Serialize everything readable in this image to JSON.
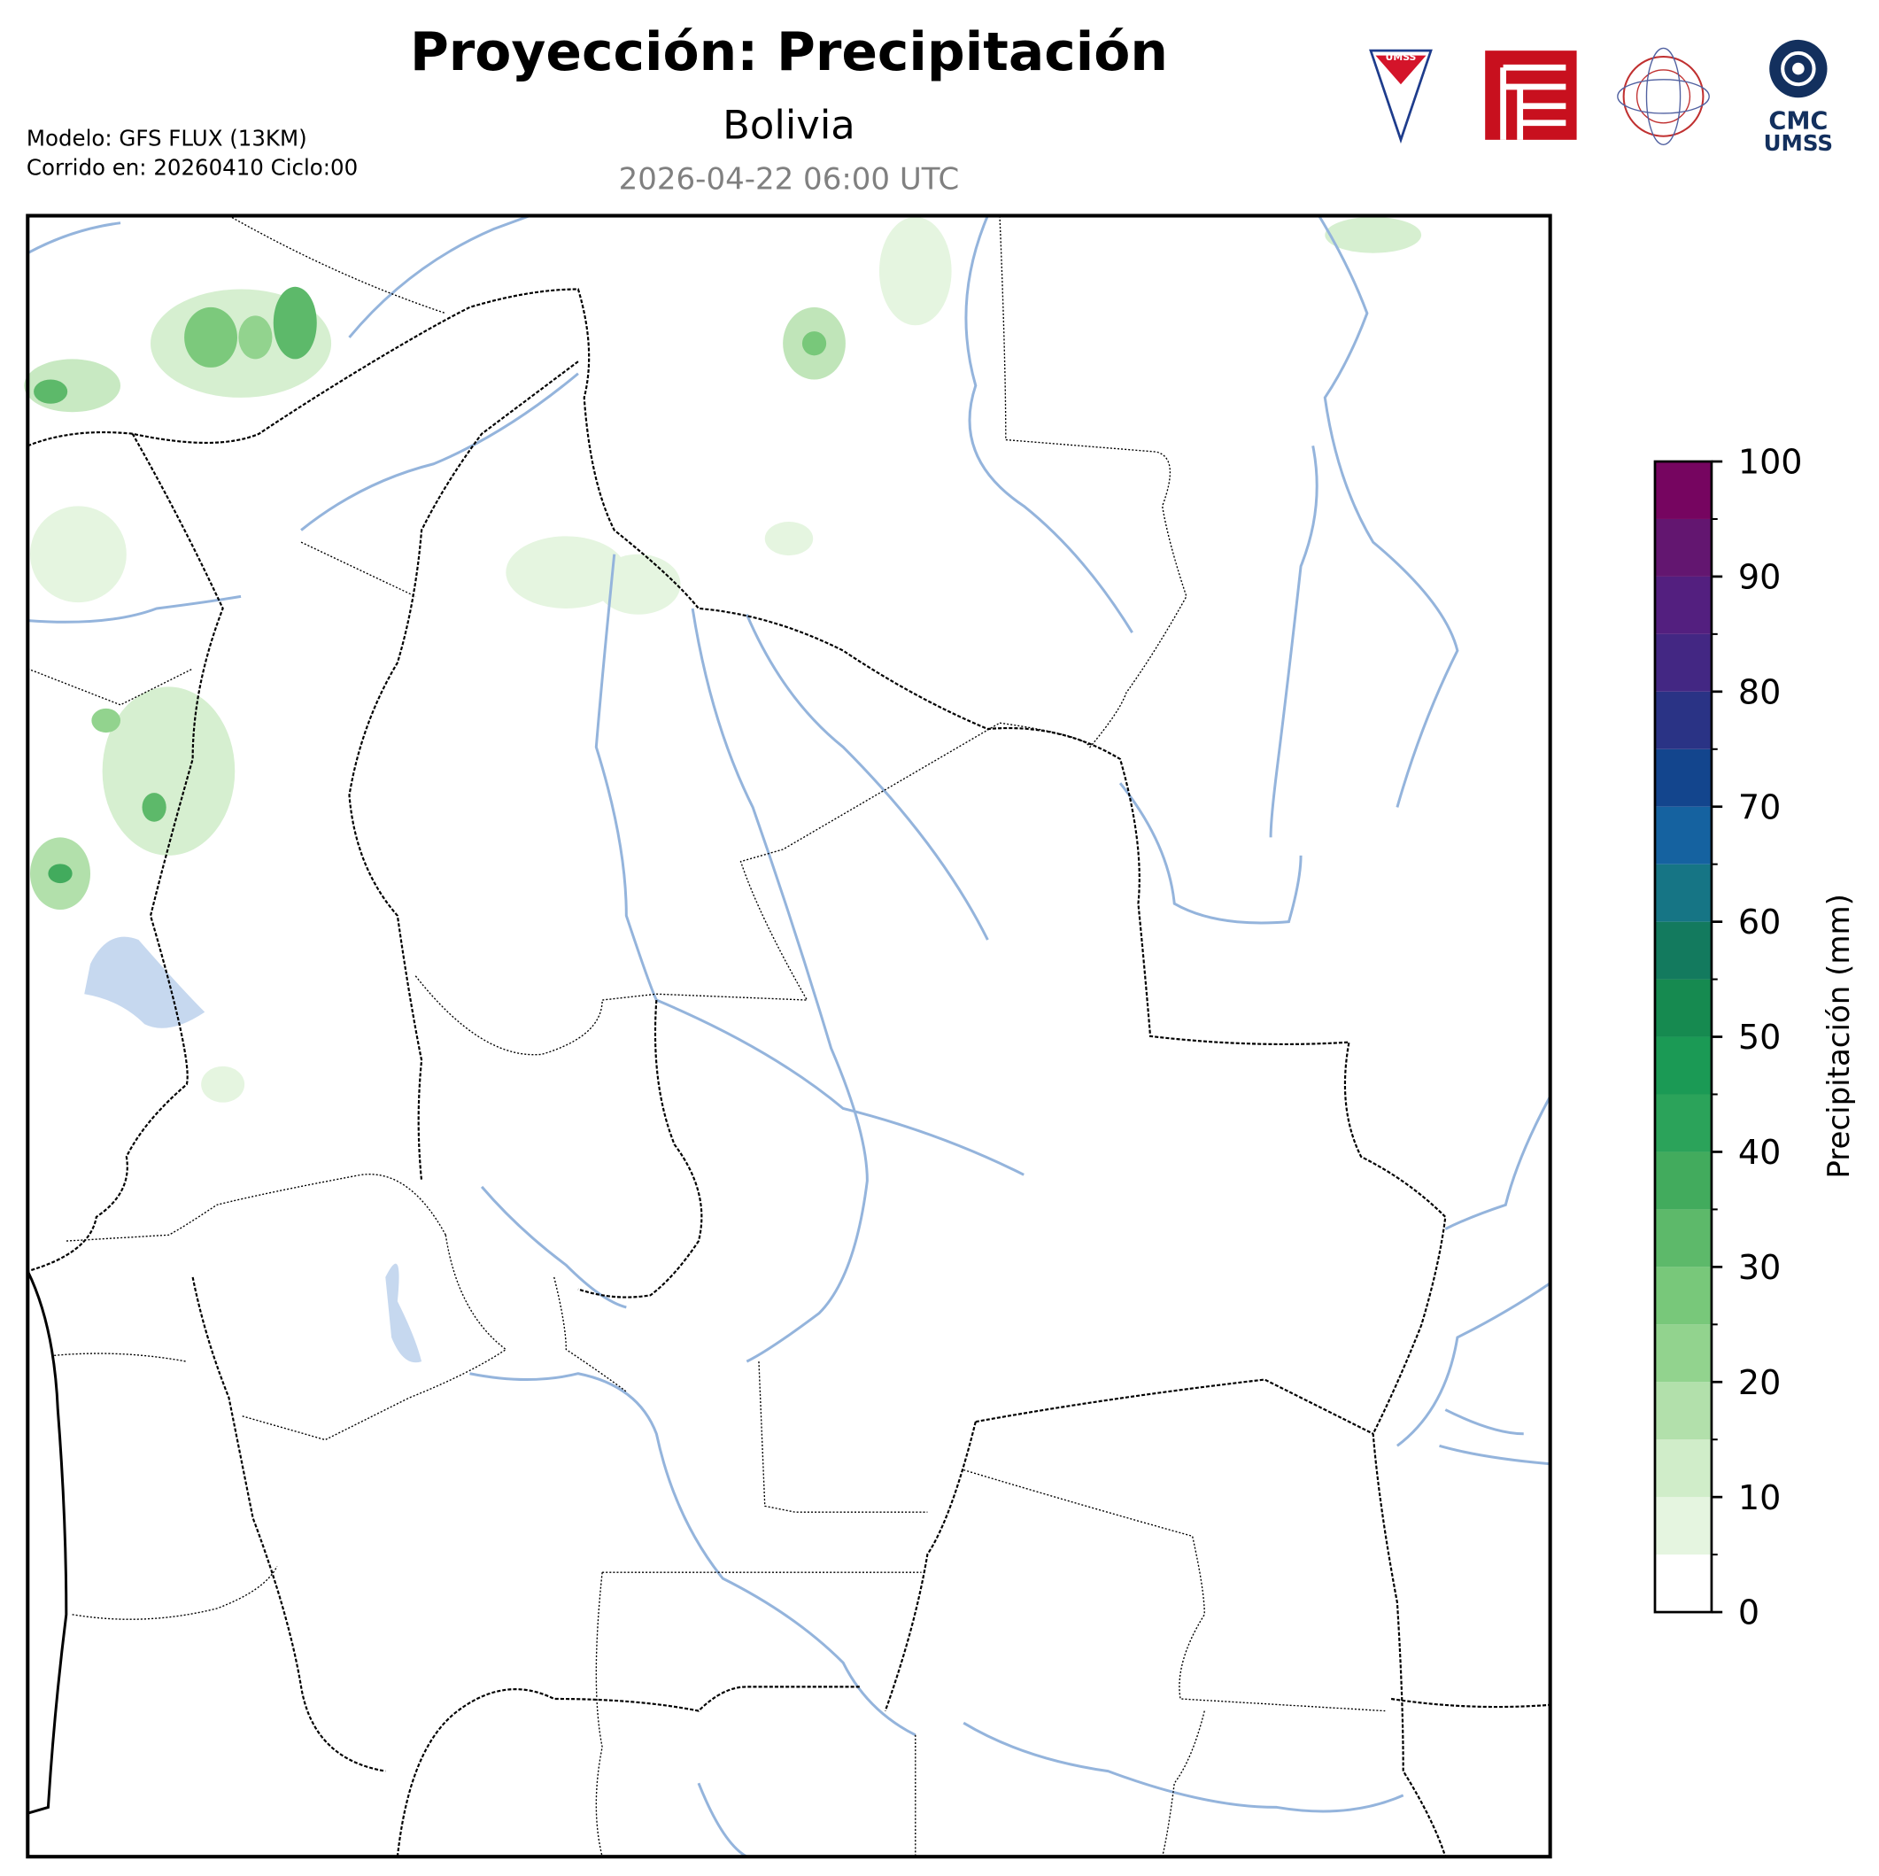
{
  "header": {
    "title": "Proyección: Precipitación",
    "region": "Bolivia",
    "valid_time": "2026-04-22 06:00 UTC",
    "model": "Modelo: GFS FLUX (13KM)",
    "run": "Corrido en: 20260410 Ciclo:00"
  },
  "logos": {
    "umss_badge": "UMSS",
    "cmc": "CMC",
    "umss": "UMSS"
  },
  "colorbar": {
    "label": "Precipitación (mm)",
    "lim": [
      0,
      100
    ],
    "ticks": [
      0,
      10,
      20,
      30,
      40,
      50,
      60,
      70,
      80,
      90,
      100
    ],
    "levels": [
      0,
      5,
      10,
      15,
      20,
      25,
      30,
      35,
      40,
      45,
      50,
      55,
      60,
      65,
      70,
      75,
      80,
      85,
      90,
      95,
      100
    ],
    "colors": [
      "#ffffff",
      "#e5f5e0",
      "#d0edc9",
      "#b2e0ab",
      "#92d38e",
      "#78c87a",
      "#5db96a",
      "#42ab5d",
      "#2ba35a",
      "#1b9a55",
      "#168a50",
      "#137a5e",
      "#167585",
      "#1562a0",
      "#13458d",
      "#2a3385",
      "#432783",
      "#531f7f",
      "#631670",
      "#760560"
    ]
  }
}
